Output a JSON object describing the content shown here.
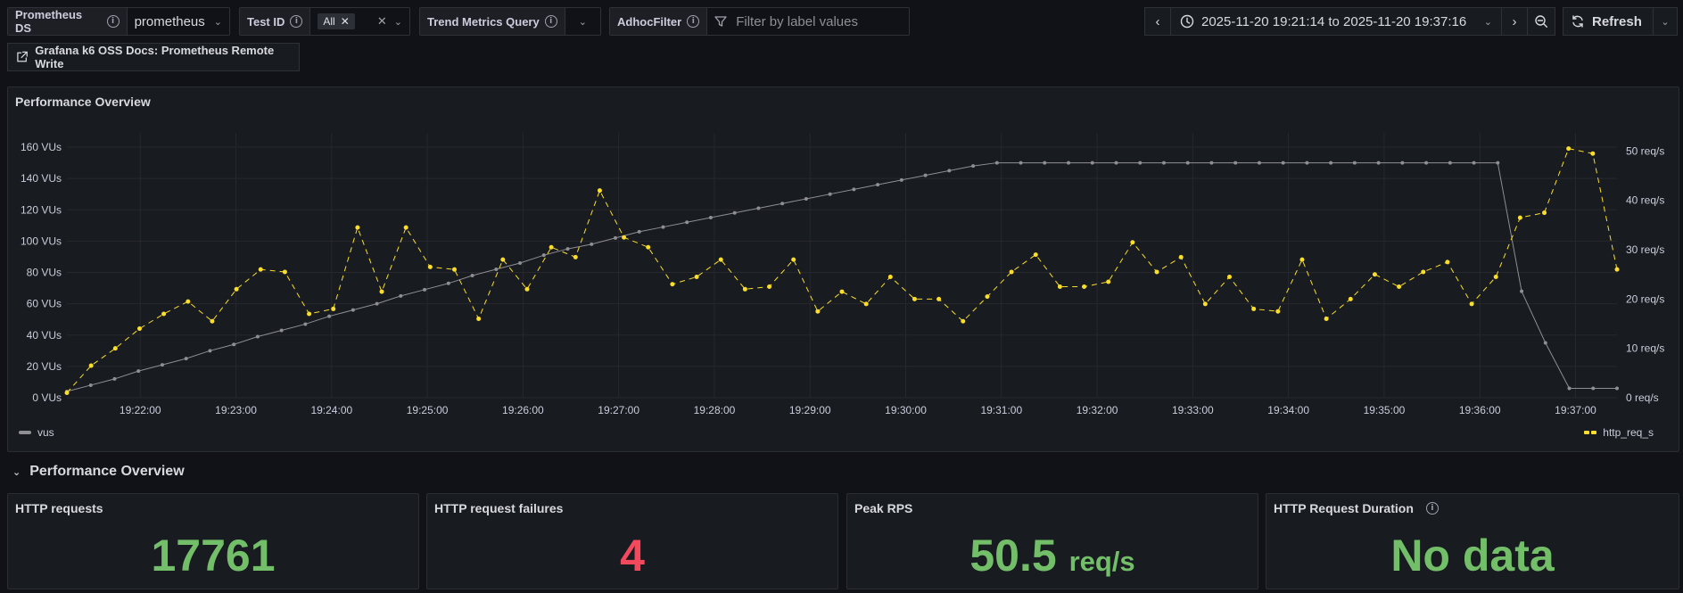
{
  "vars": {
    "ds_label": "Prometheus DS",
    "ds_value": "prometheus",
    "testid_label": "Test ID",
    "testid_chip": "All",
    "trend_label": "Trend Metrics Query",
    "adhoc_label": "AdhocFilter",
    "adhoc_placeholder": "Filter by label values"
  },
  "timepicker": {
    "range": "2025-11-20 19:21:14 to 2025-11-20 19:37:16",
    "refresh_label": "Refresh"
  },
  "doc_link": "Grafana k6 OSS Docs: Prometheus Remote Write",
  "timeseries_panel": {
    "title": "Performance Overview",
    "legend_left": "vus",
    "legend_right": "http_req_s"
  },
  "row": {
    "title": "Performance Overview"
  },
  "stats": [
    {
      "title": "HTTP requests",
      "value": "17761",
      "unit": ""
    },
    {
      "title": "HTTP request failures",
      "value": "4",
      "unit": ""
    },
    {
      "title": "Peak RPS",
      "value": "50.5",
      "unit": "req/s"
    },
    {
      "title": "HTTP Request Duration",
      "value": "No data",
      "unit": ""
    }
  ],
  "colors": {
    "vus": "#8e8e94",
    "rps": "#fade2a",
    "green": "#73bf69",
    "red": "#f2495c"
  },
  "chart_data": {
    "type": "line",
    "title": "Performance Overview",
    "x_range_seconds": [
      0,
      972
    ],
    "x_ticks": [
      "19:22:00",
      "19:23:00",
      "19:24:00",
      "19:25:00",
      "19:26:00",
      "19:27:00",
      "19:28:00",
      "19:29:00",
      "19:30:00",
      "19:31:00",
      "19:32:00",
      "19:33:00",
      "19:34:00",
      "19:35:00",
      "19:36:00",
      "19:37:00"
    ],
    "left_axis": {
      "ticks": [
        "0 VUs",
        "20 VUs",
        "40 VUs",
        "60 VUs",
        "80 VUs",
        "100 VUs",
        "120 VUs",
        "140 VUs",
        "160 VUs"
      ],
      "ylim": [
        0,
        160
      ]
    },
    "right_axis": {
      "ticks": [
        "0 req/s",
        "10 req/s",
        "20 req/s",
        "30 req/s",
        "40 req/s",
        "50 req/s"
      ],
      "ylim": [
        0,
        50.8
      ]
    },
    "series": [
      {
        "name": "vus",
        "axis": "left",
        "values": [
          4,
          8,
          12,
          17,
          21,
          25,
          30,
          34,
          39,
          43,
          47,
          52,
          56,
          60,
          65,
          69,
          73,
          78,
          82,
          86,
          91,
          95,
          98,
          102,
          106,
          109,
          112,
          115,
          118,
          121,
          124,
          127,
          130,
          133,
          136,
          139,
          142,
          145,
          148,
          150,
          150,
          150,
          150,
          150,
          150,
          150,
          150,
          150,
          150,
          150,
          150,
          150,
          150,
          150,
          150,
          150,
          150,
          150,
          150,
          150,
          150,
          68,
          35,
          6,
          6,
          6
        ]
      },
      {
        "name": "http_req_s",
        "axis": "right",
        "values": [
          1,
          6.5,
          10,
          14,
          17,
          19.5,
          15.5,
          22,
          26,
          25.5,
          17,
          18,
          34.5,
          21.5,
          34.5,
          26.5,
          26,
          16,
          28,
          22,
          30.5,
          28.5,
          42,
          32.5,
          30.5,
          23,
          24.5,
          28,
          22,
          22.5,
          28,
          17.5,
          21.5,
          19,
          24.5,
          20,
          20,
          15.5,
          20.5,
          25.5,
          29,
          22.5,
          22.5,
          23.5,
          31.5,
          25.5,
          28.5,
          19,
          24.5,
          18,
          17.5,
          28,
          16,
          20,
          25,
          22.5,
          25.5,
          27.5,
          19,
          24.5,
          36.5,
          37.5,
          50.5,
          49.5,
          26
        ]
      }
    ]
  }
}
